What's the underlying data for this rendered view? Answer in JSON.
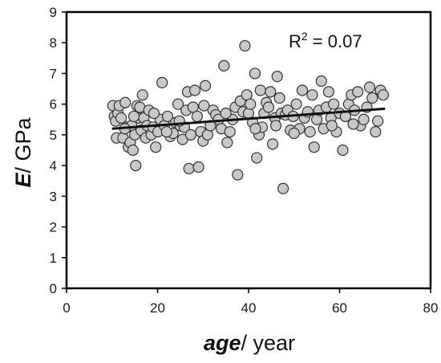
{
  "chart_data": {
    "type": "scatter",
    "xlabel": {
      "variable": "age",
      "unit": "/ year"
    },
    "ylabel": {
      "variable": "E",
      "unit": "/ GPa"
    },
    "xlim": [
      0,
      80
    ],
    "ylim": [
      0,
      9
    ],
    "xticks": [
      0,
      20,
      40,
      60,
      80
    ],
    "yticks": [
      0,
      1,
      2,
      3,
      4,
      5,
      6,
      7,
      8,
      9
    ],
    "grid": false,
    "legend": "none",
    "annotation": {
      "text_prefix": "R",
      "superscript": "2",
      "text_suffix": " = 0.07"
    },
    "trendline": {
      "x": [
        10,
        70
      ],
      "y": [
        5.2,
        5.85
      ]
    },
    "marker_fill": "#c8c8c8",
    "marker_stroke": "#333333",
    "points": [
      [
        10.2,
        5.95
      ],
      [
        10.5,
        5.6
      ],
      [
        10.8,
        5.45
      ],
      [
        11.0,
        4.9
      ],
      [
        11.3,
        5.7
      ],
      [
        11.6,
        5.95
      ],
      [
        12.0,
        5.55
      ],
      [
        12.4,
        4.9
      ],
      [
        12.9,
        6.05
      ],
      [
        13.2,
        5.25
      ],
      [
        13.6,
        4.6
      ],
      [
        14.0,
        4.75
      ],
      [
        14.3,
        5.3
      ],
      [
        14.6,
        4.5
      ],
      [
        15.0,
        5.0
      ],
      [
        15.2,
        4.0
      ],
      [
        15.5,
        5.95
      ],
      [
        15.8,
        5.55
      ],
      [
        16.1,
        5.9
      ],
      [
        16.4,
        5.15
      ],
      [
        16.7,
        6.3
      ],
      [
        17.0,
        5.55
      ],
      [
        17.4,
        4.9
      ],
      [
        17.7,
        5.3
      ],
      [
        18.1,
        5.8
      ],
      [
        18.6,
        5.0
      ],
      [
        19.0,
        5.25
      ],
      [
        19.6,
        4.6
      ],
      [
        20.1,
        5.1
      ],
      [
        20.6,
        5.5
      ],
      [
        21.0,
        6.7
      ],
      [
        21.5,
        5.3
      ],
      [
        22.2,
        5.6
      ],
      [
        22.8,
        4.95
      ],
      [
        23.4,
        5.05
      ],
      [
        24.0,
        5.4
      ],
      [
        24.5,
        6.0
      ],
      [
        25.0,
        5.3
      ],
      [
        25.5,
        4.85
      ],
      [
        25.9,
        5.25
      ],
      [
        26.3,
        5.8
      ],
      [
        26.6,
        6.4
      ],
      [
        26.9,
        3.9
      ],
      [
        27.3,
        5.0
      ],
      [
        27.8,
        5.9
      ],
      [
        28.2,
        6.45
      ],
      [
        28.7,
        5.6
      ],
      [
        29.0,
        3.95
      ],
      [
        29.5,
        5.1
      ],
      [
        30.0,
        4.8
      ],
      [
        30.5,
        6.6
      ],
      [
        31.0,
        5.0
      ],
      [
        31.6,
        5.3
      ],
      [
        32.2,
        5.8
      ],
      [
        32.8,
        5.65
      ],
      [
        33.4,
        5.5
      ],
      [
        34.0,
        5.2
      ],
      [
        34.6,
        7.25
      ],
      [
        35.3,
        4.75
      ],
      [
        35.9,
        5.1
      ],
      [
        36.5,
        5.5
      ],
      [
        37.1,
        5.9
      ],
      [
        37.6,
        3.7
      ],
      [
        38.2,
        6.1
      ],
      [
        38.8,
        5.75
      ],
      [
        39.2,
        7.9
      ],
      [
        39.6,
        6.3
      ],
      [
        40.0,
        5.7
      ],
      [
        40.4,
        6.0
      ],
      [
        40.9,
        5.4
      ],
      [
        41.4,
        7.0
      ],
      [
        41.8,
        4.25
      ],
      [
        42.3,
        5.0
      ],
      [
        42.6,
        6.45
      ],
      [
        43.0,
        5.25
      ],
      [
        43.4,
        5.7
      ],
      [
        43.9,
        6.05
      ],
      [
        44.4,
        5.9
      ],
      [
        44.8,
        6.4
      ],
      [
        45.3,
        4.7
      ],
      [
        45.8,
        5.55
      ],
      [
        46.3,
        6.9
      ],
      [
        46.8,
        6.2
      ],
      [
        47.2,
        5.7
      ],
      [
        47.6,
        3.25
      ],
      [
        48.1,
        5.65
      ],
      [
        48.6,
        5.8
      ],
      [
        49.2,
        5.15
      ],
      [
        49.8,
        5.6
      ],
      [
        50.5,
        6.0
      ],
      [
        51.2,
        5.2
      ],
      [
        51.8,
        6.45
      ],
      [
        52.3,
        5.55
      ],
      [
        53.0,
        5.75
      ],
      [
        53.5,
        5.1
      ],
      [
        54.0,
        6.3
      ],
      [
        54.4,
        4.6
      ],
      [
        55.0,
        5.5
      ],
      [
        55.5,
        5.8
      ],
      [
        56.0,
        6.75
      ],
      [
        56.5,
        5.2
      ],
      [
        57.1,
        5.9
      ],
      [
        57.6,
        6.4
      ],
      [
        58.1,
        5.55
      ],
      [
        58.7,
        6.0
      ],
      [
        59.3,
        5.1
      ],
      [
        60.0,
        5.7
      ],
      [
        60.7,
        4.5
      ],
      [
        61.3,
        5.6
      ],
      [
        62.0,
        6.0
      ],
      [
        62.6,
        6.3
      ],
      [
        63.3,
        5.8
      ],
      [
        64.0,
        6.4
      ],
      [
        64.6,
        5.3
      ],
      [
        65.3,
        5.5
      ],
      [
        66.0,
        5.9
      ],
      [
        66.6,
        6.55
      ],
      [
        67.2,
        6.2
      ],
      [
        67.9,
        5.1
      ],
      [
        68.4,
        5.45
      ],
      [
        69.0,
        6.45
      ],
      [
        69.6,
        6.3
      ],
      [
        41.5,
        5.2
      ],
      [
        35.0,
        5.7
      ],
      [
        24.8,
        5.45
      ],
      [
        19.2,
        5.7
      ],
      [
        12.8,
        5.2
      ],
      [
        58.3,
        5.3
      ],
      [
        63.0,
        5.35
      ],
      [
        46.0,
        5.3
      ],
      [
        30.2,
        5.95
      ],
      [
        22.0,
        5.1
      ],
      [
        14.8,
        5.6
      ],
      [
        50.0,
        5.05
      ]
    ]
  }
}
